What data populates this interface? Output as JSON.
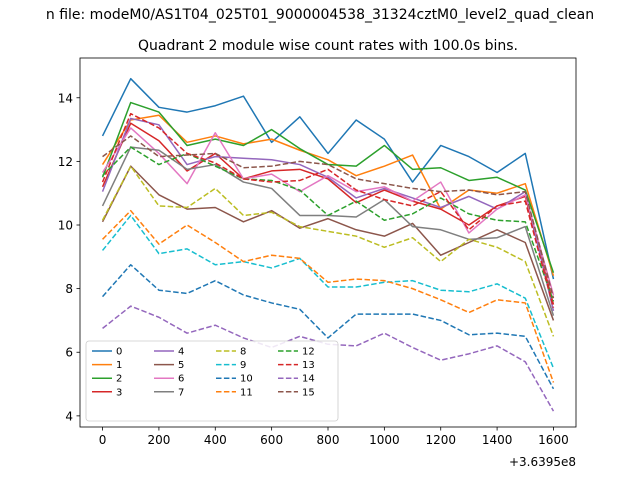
{
  "figure": {
    "suptitle": "n file: modeM0/AS1T04_025T01_9000004538_31324cztM0_level2_quad_clean",
    "title": "Quadrant 2 module wise count rates with 100.0s bins.",
    "x_offset_label": "+3.6395e8"
  },
  "chart_data": {
    "type": "line",
    "title": "Quadrant 2 module wise count rates with 100.0s bins.",
    "xlabel": "",
    "ylabel": "",
    "x_offset": 363950000,
    "x": [
      0,
      100,
      200,
      300,
      400,
      500,
      600,
      700,
      800,
      900,
      1000,
      1100,
      1200,
      1300,
      1400,
      1500,
      1600
    ],
    "xlim": [
      -80,
      1680
    ],
    "ylim": [
      3.65,
      15.25
    ],
    "xticks": [
      0,
      200,
      400,
      600,
      800,
      1000,
      1200,
      1400,
      1600
    ],
    "yticks": [
      4,
      6,
      8,
      10,
      12,
      14
    ],
    "grid": false,
    "legend": {
      "position": "lower-left",
      "columns": 4
    },
    "series": [
      {
        "name": "0",
        "color": "#1f77b4",
        "dash": "solid",
        "values": [
          12.8,
          14.6,
          13.7,
          13.55,
          13.75,
          14.05,
          12.6,
          13.4,
          12.25,
          13.3,
          12.7,
          11.35,
          12.5,
          12.15,
          11.65,
          12.25,
          8.3
        ]
      },
      {
        "name": "1",
        "color": "#ff7f0e",
        "dash": "solid",
        "values": [
          11.9,
          13.3,
          13.45,
          12.6,
          12.8,
          12.55,
          12.7,
          12.35,
          12.05,
          11.55,
          11.85,
          12.2,
          10.5,
          11.1,
          11.0,
          11.3,
          8.4
        ]
      },
      {
        "name": "2",
        "color": "#2ca02c",
        "dash": "solid",
        "values": [
          11.5,
          13.85,
          13.55,
          12.5,
          12.7,
          12.5,
          13.0,
          12.4,
          11.9,
          11.85,
          12.5,
          11.75,
          11.8,
          11.4,
          11.5,
          11.1,
          8.5
        ]
      },
      {
        "name": "3",
        "color": "#d62728",
        "dash": "solid",
        "values": [
          11.2,
          13.2,
          12.65,
          11.7,
          12.25,
          11.45,
          11.7,
          11.75,
          11.45,
          10.7,
          11.1,
          10.75,
          10.5,
          10.0,
          10.6,
          10.9,
          7.5
        ]
      },
      {
        "name": "4",
        "color": "#9467bd",
        "dash": "solid",
        "values": [
          11.05,
          13.35,
          13.15,
          11.9,
          12.15,
          12.1,
          12.05,
          11.9,
          11.5,
          10.85,
          11.15,
          10.85,
          10.55,
          10.9,
          10.5,
          11.05,
          7.3
        ]
      },
      {
        "name": "5",
        "color": "#8c564b",
        "dash": "solid",
        "values": [
          10.1,
          11.85,
          10.95,
          10.5,
          10.55,
          10.1,
          10.45,
          9.9,
          10.2,
          9.85,
          9.65,
          10.05,
          9.05,
          9.45,
          9.85,
          9.45,
          7.0
        ]
      },
      {
        "name": "6",
        "color": "#e377c2",
        "dash": "solid",
        "values": [
          11.65,
          13.05,
          12.25,
          11.3,
          12.9,
          11.45,
          11.6,
          11.05,
          11.55,
          11.05,
          11.2,
          10.75,
          11.35,
          9.75,
          10.5,
          10.95,
          7.8
        ]
      },
      {
        "name": "7",
        "color": "#7f7f7f",
        "dash": "solid",
        "values": [
          10.6,
          12.45,
          12.35,
          11.75,
          11.9,
          11.35,
          11.15,
          10.3,
          10.3,
          10.25,
          10.8,
          9.95,
          9.85,
          9.55,
          9.6,
          9.95,
          7.15
        ]
      },
      {
        "name": "8",
        "color": "#bcbd22",
        "dash": "dashed",
        "values": [
          10.15,
          11.85,
          10.6,
          10.55,
          11.15,
          10.3,
          10.4,
          9.95,
          9.8,
          9.65,
          9.3,
          9.6,
          8.85,
          9.55,
          9.3,
          8.85,
          6.5
        ]
      },
      {
        "name": "9",
        "color": "#17becf",
        "dash": "dashed",
        "values": [
          9.2,
          10.3,
          9.1,
          9.25,
          8.75,
          8.85,
          8.65,
          8.95,
          8.05,
          8.05,
          8.2,
          8.25,
          7.95,
          7.9,
          8.15,
          7.7,
          5.5
        ]
      },
      {
        "name": "10",
        "color": "#1f77b4",
        "dash": "dashed",
        "values": [
          7.75,
          8.75,
          7.95,
          7.85,
          8.25,
          7.8,
          7.55,
          7.35,
          6.45,
          7.2,
          7.2,
          7.2,
          7.0,
          6.55,
          6.6,
          6.5,
          4.85
        ]
      },
      {
        "name": "11",
        "color": "#ff7f0e",
        "dash": "dashed",
        "values": [
          9.55,
          10.45,
          9.4,
          10.0,
          9.45,
          8.85,
          9.05,
          8.95,
          8.2,
          8.3,
          8.25,
          8.0,
          7.65,
          7.25,
          7.65,
          7.55,
          5.05
        ]
      },
      {
        "name": "12",
        "color": "#2ca02c",
        "dash": "dashed",
        "values": [
          11.55,
          12.45,
          11.9,
          12.25,
          11.85,
          11.45,
          11.4,
          11.1,
          10.3,
          10.75,
          10.15,
          10.35,
          10.85,
          10.35,
          10.15,
          10.1,
          7.6
        ]
      },
      {
        "name": "13",
        "color": "#d62728",
        "dash": "dashed",
        "values": [
          11.35,
          13.5,
          13.05,
          12.25,
          11.95,
          11.45,
          11.35,
          11.4,
          11.75,
          11.1,
          10.8,
          10.6,
          11.05,
          9.85,
          10.6,
          10.75,
          7.4
        ]
      },
      {
        "name": "14",
        "color": "#9467bd",
        "dash": "dashed",
        "values": [
          6.75,
          7.45,
          7.1,
          6.6,
          6.85,
          6.45,
          6.15,
          6.5,
          6.25,
          6.2,
          6.6,
          6.15,
          5.75,
          5.95,
          6.2,
          5.7,
          4.15
        ]
      },
      {
        "name": "15",
        "color": "#8c564b",
        "dash": "dashed",
        "values": [
          12.15,
          12.8,
          12.15,
          12.2,
          12.25,
          11.8,
          11.85,
          12.0,
          11.9,
          11.45,
          11.3,
          11.15,
          11.05,
          11.1,
          10.95,
          11.05,
          7.7
        ]
      }
    ]
  }
}
